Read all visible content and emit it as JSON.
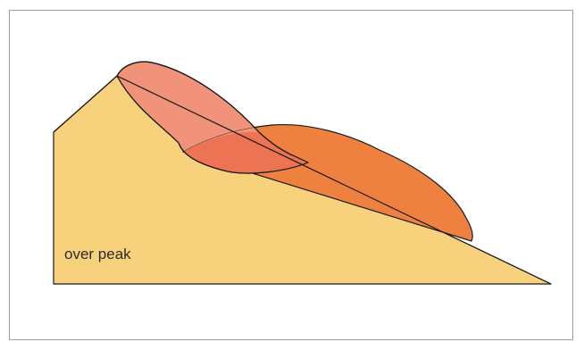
{
  "diagram": {
    "caption": "over peak",
    "colors": {
      "background": "#ffffff",
      "border": "#9e9e9e",
      "slope": "#f7d17c",
      "original_slide_mass": "#f0937a",
      "displaced_slide_mass": "#ee8040",
      "overlap": "#ec7452",
      "outline": "#1a1a1a"
    }
  }
}
